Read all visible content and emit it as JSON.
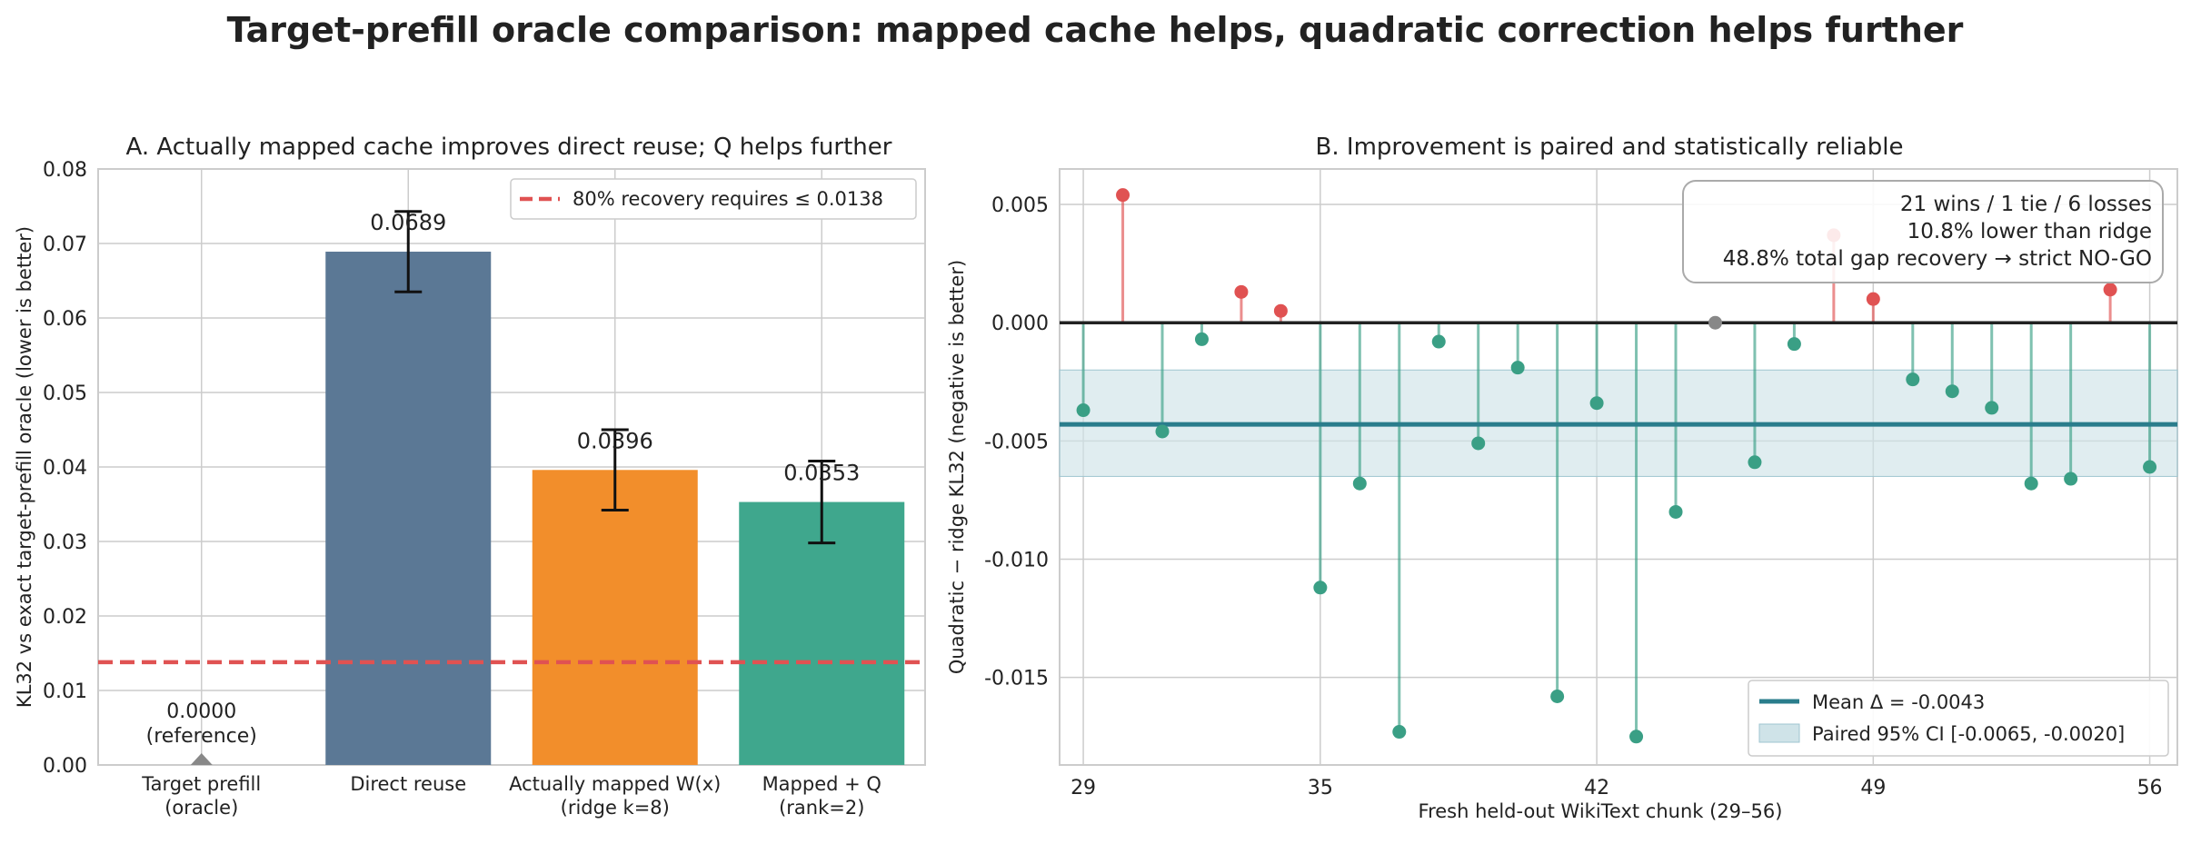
{
  "figure": {
    "suptitle": "Target-prefill oracle comparison: mapped cache helps, quadratic correction helps further"
  },
  "chart_data": [
    {
      "type": "bar",
      "title": "A. Actually mapped cache improves direct reuse; Q helps further",
      "ylabel": "KL32 vs exact target-prefill oracle (lower is better)",
      "categories": [
        "Target prefill\n(oracle)",
        "Direct reuse",
        "Actually mapped W(x)\n(ridge k=8)",
        "Mapped + Q\n(rank=2)"
      ],
      "values": [
        0.0,
        0.0689,
        0.0396,
        0.0353
      ],
      "errors": [
        0.0,
        0.0054,
        0.0054,
        0.0055
      ],
      "value_labels": [
        "0.0000\n(reference)",
        "0.0689",
        "0.0396",
        "0.0353"
      ],
      "colors": [
        "#888888",
        "#5b7895",
        "#f28e2b",
        "#3fa78d"
      ],
      "ylim": [
        0,
        0.08
      ],
      "yticks": [
        0.0,
        0.01,
        0.02,
        0.03,
        0.04,
        0.05,
        0.06,
        0.07,
        0.08
      ],
      "ytick_labels": [
        "0.00",
        "0.01",
        "0.02",
        "0.03",
        "0.04",
        "0.05",
        "0.06",
        "0.07",
        "0.08"
      ],
      "threshold": {
        "value": 0.0138,
        "label": "80% recovery requires ≤ 0.0138",
        "color": "#e05252"
      },
      "legend_position": "top-right",
      "grid": true
    },
    {
      "type": "scatter",
      "title": "B. Improvement is paired and statistically reliable",
      "xlabel": "Fresh held-out WikiText chunk (29–56)",
      "ylabel": "Quadratic − ridge KL32 (negative is better)",
      "x": [
        29,
        30,
        31,
        32,
        33,
        34,
        35,
        36,
        37,
        38,
        39,
        40,
        41,
        42,
        43,
        44,
        45,
        46,
        47,
        48,
        49,
        50,
        51,
        52,
        53,
        54,
        55,
        56
      ],
      "y": [
        -0.0037,
        0.0054,
        -0.0046,
        -0.0007,
        0.0013,
        0.0005,
        -0.0112,
        -0.0068,
        -0.0173,
        -0.0008,
        -0.0051,
        -0.0019,
        -0.0158,
        -0.0034,
        -0.0175,
        -0.008,
        0.0,
        -0.0059,
        -0.0009,
        0.0037,
        0.001,
        -0.0024,
        -0.0029,
        -0.0036,
        -0.0068,
        -0.0066,
        0.0014,
        -0.0061
      ],
      "xlim": [
        28.4,
        56.7
      ],
      "ylim": [
        -0.0187,
        0.0065
      ],
      "xticks": [
        29,
        35,
        42,
        49,
        56
      ],
      "yticks": [
        0.005,
        0.0,
        -0.005,
        -0.01,
        -0.015
      ],
      "ytick_labels": [
        "0.005",
        "0.000",
        "-0.005",
        "-0.010",
        "-0.015"
      ],
      "mean": -0.0043,
      "ci": [
        -0.0065,
        -0.002
      ],
      "colors": {
        "win": "#3a9f85",
        "loss": "#e05252",
        "tie": "#888888",
        "mean_line": "#2a7d8c",
        "ci_band": "#cfe3e8",
        "zero_line": "#222222"
      },
      "annotation": [
        "21 wins / 1 tie / 6 losses",
        "10.8% lower than ridge",
        "48.8% total gap recovery → strict NO-GO"
      ],
      "legend": [
        "Mean Δ = -0.0043",
        "Paired 95% CI [-0.0065, -0.0020]"
      ],
      "legend_position": "bottom-right",
      "grid": true
    }
  ]
}
